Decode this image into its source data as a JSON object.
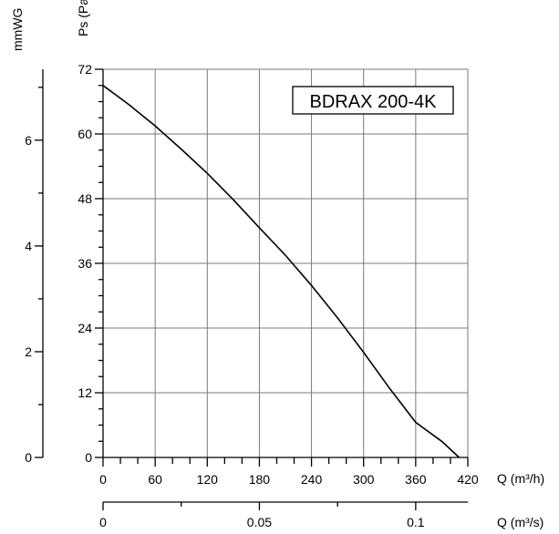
{
  "chart_data": {
    "type": "line",
    "model": "BDRAX 200-4K",
    "xlabel": "Q (m³/h)",
    "xlabel_secondary": "Q (m³/s)",
    "ylabel": "Ps (Pa)",
    "ylabel_secondary": "mmWG",
    "xlim": [
      0,
      420
    ],
    "ylim": [
      0,
      72
    ],
    "x_ticks": [
      0,
      60,
      120,
      180,
      240,
      300,
      360,
      420
    ],
    "y_ticks": [
      0,
      12,
      24,
      36,
      48,
      60,
      72
    ],
    "x2_ticks": [
      0,
      0.05,
      0.1
    ],
    "x2_tick_labels": [
      "0",
      "0.05",
      "0.1"
    ],
    "y2_ticks": [
      0,
      2,
      4,
      6
    ],
    "grid": true,
    "series": [
      {
        "x": [
          0,
          30,
          60,
          90,
          120,
          150,
          180,
          210,
          240,
          270,
          300,
          330,
          360,
          390,
          410
        ],
        "y": [
          69,
          65.4,
          61.5,
          57.2,
          52.7,
          47.8,
          42.6,
          37.5,
          31.9,
          25.9,
          19.5,
          12.8,
          6.5,
          3.0,
          0
        ]
      }
    ]
  }
}
